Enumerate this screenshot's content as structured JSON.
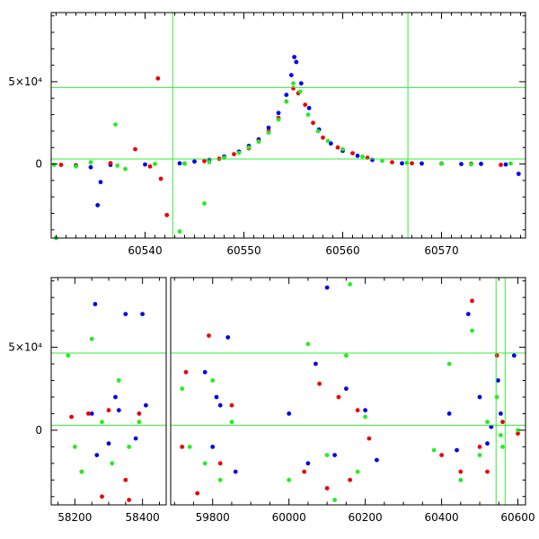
{
  "chart_data": [
    {
      "type": "scatter",
      "panel": "top",
      "xlim": [
        60530.5,
        60578.5
      ],
      "ylim": [
        -45000,
        92000
      ],
      "x_ticks": [
        60540,
        60550,
        60560,
        60570
      ],
      "y_ticks": [
        {
          "value": 50000,
          "label": "5×10⁴"
        },
        {
          "value": 0,
          "label": "0"
        }
      ],
      "hlines": [
        46500,
        3000
      ],
      "vlines": [
        60542.8,
        60566.6
      ],
      "line_color": "#33ee33",
      "series": [
        {
          "color": "#0000ee",
          "points": [
            [
              60533,
              -800
            ],
            [
              60534.5,
              -2000
            ],
            [
              60535.2,
              -25000
            ],
            [
              60535.5,
              -11000
            ],
            [
              60536.5,
              -500
            ],
            [
              60540,
              -300
            ],
            [
              60543.5,
              400
            ],
            [
              60545,
              1500
            ],
            [
              60546.5,
              2500
            ],
            [
              60548,
              4500
            ],
            [
              60549.5,
              7500
            ],
            [
              60550.5,
              11000
            ],
            [
              60551.5,
              15000
            ],
            [
              60552.5,
              22000
            ],
            [
              60553.5,
              31000
            ],
            [
              60554.3,
              42000
            ],
            [
              60554.8,
              54000
            ],
            [
              60555.1,
              65000
            ],
            [
              60555.3,
              62000
            ],
            [
              60555.8,
              49000
            ],
            [
              60556.6,
              34000
            ],
            [
              60557.6,
              21000
            ],
            [
              60558.8,
              12500
            ],
            [
              60560,
              8000
            ],
            [
              60561.5,
              5000
            ],
            [
              60563,
              2500
            ],
            [
              60566,
              400
            ],
            [
              60568,
              300
            ],
            [
              60570,
              200
            ],
            [
              60572,
              0
            ],
            [
              60574,
              100
            ],
            [
              60576.5,
              -300
            ],
            [
              60577.8,
              -6000
            ]
          ]
        },
        {
          "color": "#ee0000",
          "points": [
            [
              60531.5,
              -500
            ],
            [
              60533,
              -1000
            ],
            [
              60536.5,
              500
            ],
            [
              60539,
              9000
            ],
            [
              60540.5,
              -1500
            ],
            [
              60541.3,
              52000
            ],
            [
              60541.6,
              -9000
            ],
            [
              60542.2,
              -31000
            ],
            [
              60544,
              300
            ],
            [
              60546,
              1800
            ],
            [
              60547.5,
              3200
            ],
            [
              60549,
              6000
            ],
            [
              60550.5,
              9500
            ],
            [
              60551.5,
              14000
            ],
            [
              60552.5,
              20000
            ],
            [
              60553.5,
              28000
            ],
            [
              60554.3,
              38000
            ],
            [
              60555,
              46000
            ],
            [
              60555.5,
              43000
            ],
            [
              60556.2,
              36000
            ],
            [
              60557,
              25000
            ],
            [
              60558,
              16000
            ],
            [
              60559.5,
              10000
            ],
            [
              60561,
              6500
            ],
            [
              60562.5,
              3800
            ],
            [
              60565,
              1000
            ],
            [
              60567,
              400
            ],
            [
              60570,
              300
            ],
            [
              60573,
              200
            ],
            [
              60576,
              -500
            ]
          ]
        },
        {
          "color": "#22ee22",
          "points": [
            [
              60530.8,
              -500
            ],
            [
              60531,
              -45000
            ],
            [
              60533,
              -1500
            ],
            [
              60534.5,
              1000
            ],
            [
              60537,
              24000
            ],
            [
              60537.2,
              -1000
            ],
            [
              60538,
              -3000
            ],
            [
              60541,
              0
            ],
            [
              60543.5,
              -41000
            ],
            [
              60544,
              200
            ],
            [
              60546,
              -24000
            ],
            [
              60546.5,
              1200
            ],
            [
              60548,
              3800
            ],
            [
              60549.5,
              6800
            ],
            [
              60550.5,
              10000
            ],
            [
              60551.5,
              13500
            ],
            [
              60552.5,
              19000
            ],
            [
              60553.5,
              27000
            ],
            [
              60554.3,
              38000
            ],
            [
              60555,
              49000
            ],
            [
              60555.7,
              44000
            ],
            [
              60556.5,
              30000
            ],
            [
              60557.5,
              20000
            ],
            [
              60558.5,
              14000
            ],
            [
              60560,
              9000
            ],
            [
              60562,
              4500
            ],
            [
              60564,
              2000
            ],
            [
              60566.5,
              700
            ],
            [
              60570,
              200
            ],
            [
              60573,
              -200
            ],
            [
              60577,
              300
            ]
          ]
        }
      ]
    },
    {
      "type": "scatter",
      "panel": "bottom",
      "segments": [
        {
          "xlim": [
            58130,
            58470
          ],
          "x_ticks": [
            58200,
            58400
          ]
        },
        {
          "xlim": [
            59690,
            60620
          ],
          "x_ticks": [
            59800,
            60000,
            60200,
            60400,
            60600
          ]
        }
      ],
      "ylim": [
        -45000,
        92000
      ],
      "y_ticks": [
        {
          "value": 50000,
          "label": "5×10⁴"
        },
        {
          "value": 0,
          "label": "0"
        }
      ],
      "hlines": [
        46500,
        3000
      ],
      "vlines": [
        60542.8,
        60566.6
      ],
      "line_color": "#33ee33",
      "series": [
        {
          "color": "#0000ee",
          "points": [
            [
              58250,
              10000
            ],
            [
              58260,
              76000
            ],
            [
              58265,
              -15000
            ],
            [
              58300,
              -8000
            ],
            [
              58320,
              20000
            ],
            [
              58330,
              12000
            ],
            [
              58350,
              70000
            ],
            [
              58380,
              -5000
            ],
            [
              58400,
              70000
            ],
            [
              58410,
              15000
            ],
            [
              59780,
              35000
            ],
            [
              59800,
              -10000
            ],
            [
              59810,
              20000
            ],
            [
              59820,
              15000
            ],
            [
              59840,
              56000
            ],
            [
              59860,
              -25000
            ],
            [
              60000,
              10000
            ],
            [
              60050,
              -20000
            ],
            [
              60070,
              40000
            ],
            [
              60100,
              86000
            ],
            [
              60120,
              -15000
            ],
            [
              60150,
              25000
            ],
            [
              60200,
              12000
            ],
            [
              60230,
              -18000
            ],
            [
              60420,
              10000
            ],
            [
              60440,
              -12000
            ],
            [
              60470,
              70000
            ],
            [
              60500,
              20000
            ],
            [
              60520,
              -8000
            ],
            [
              60530,
              2000
            ],
            [
              60548,
              30000
            ],
            [
              60555,
              10000
            ],
            [
              60590,
              45000
            ]
          ]
        },
        {
          "color": "#ee0000",
          "points": [
            [
              58190,
              8000
            ],
            [
              58220,
              -25000
            ],
            [
              58240,
              10000
            ],
            [
              58280,
              -40000
            ],
            [
              58300,
              12000
            ],
            [
              58350,
              -30000
            ],
            [
              58360,
              -42000
            ],
            [
              58390,
              10000
            ],
            [
              59720,
              -10000
            ],
            [
              59730,
              35000
            ],
            [
              59760,
              -38000
            ],
            [
              59790,
              57000
            ],
            [
              59820,
              -20000
            ],
            [
              59850,
              15000
            ],
            [
              60040,
              -25000
            ],
            [
              60080,
              28000
            ],
            [
              60100,
              -35000
            ],
            [
              60130,
              20000
            ],
            [
              60160,
              -30000
            ],
            [
              60180,
              12000
            ],
            [
              60210,
              -5000
            ],
            [
              60400,
              -15000
            ],
            [
              60450,
              -25000
            ],
            [
              60480,
              78000
            ],
            [
              60500,
              -10000
            ],
            [
              60520,
              -25000
            ],
            [
              60545,
              45000
            ],
            [
              60560,
              5000
            ],
            [
              60600,
              -2000
            ]
          ]
        },
        {
          "color": "#22ee22",
          "points": [
            [
              58180,
              45000
            ],
            [
              58200,
              -10000
            ],
            [
              58220,
              -25000
            ],
            [
              58250,
              55000
            ],
            [
              58280,
              5000
            ],
            [
              58310,
              -20000
            ],
            [
              58330,
              30000
            ],
            [
              58360,
              -10000
            ],
            [
              58390,
              5000
            ],
            [
              59720,
              25000
            ],
            [
              59740,
              -10000
            ],
            [
              59780,
              -20000
            ],
            [
              59800,
              30000
            ],
            [
              59820,
              -30000
            ],
            [
              59850,
              5000
            ],
            [
              60000,
              -30000
            ],
            [
              60050,
              52000
            ],
            [
              60100,
              -15000
            ],
            [
              60120,
              -42000
            ],
            [
              60150,
              45000
            ],
            [
              60160,
              88000
            ],
            [
              60180,
              -25000
            ],
            [
              60200,
              8000
            ],
            [
              60380,
              -12000
            ],
            [
              60420,
              40000
            ],
            [
              60450,
              -30000
            ],
            [
              60480,
              60000
            ],
            [
              60500,
              -15000
            ],
            [
              60520,
              5000
            ],
            [
              60545,
              20000
            ],
            [
              60555,
              -3000
            ],
            [
              60560,
              -10000
            ],
            [
              60600,
              0
            ]
          ]
        }
      ]
    }
  ]
}
